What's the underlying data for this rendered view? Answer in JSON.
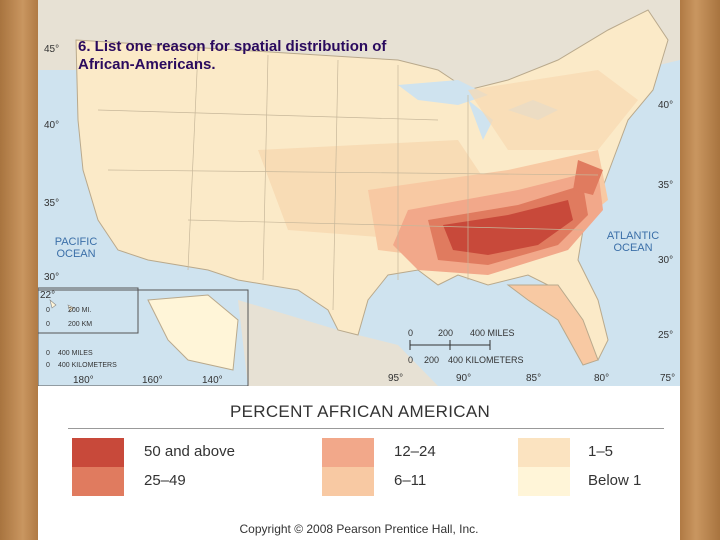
{
  "caption": "6. List one reason for spatial distribution of African-Americans.",
  "latitudes": [
    "45°",
    "40°",
    "35°",
    "30°",
    "40°",
    "35°",
    "30°",
    "25°",
    "22°"
  ],
  "longitudes": [
    "95°",
    "90°",
    "85°",
    "80°",
    "75°",
    "180°",
    "160°",
    "140°"
  ],
  "oceans": {
    "pacific": "PACIFIC OCEAN",
    "atlantic": "ATLANTIC OCEAN"
  },
  "scale": {
    "miles_ticks": [
      "0",
      "200",
      "400 MILES"
    ],
    "km_ticks": [
      "0",
      "200",
      "400 KILOMETERS"
    ],
    "inset_hawaii_miles": "200 MI.",
    "inset_hawaii_km": "200 KM",
    "inset_alaska_miles": "400 MILES",
    "inset_alaska_km": "400 KILOMETERS",
    "inset_zero": "0"
  },
  "legend": {
    "title": "PERCENT AFRICAN AMERICAN",
    "classes": [
      {
        "label": "50 and above",
        "color": "#c8493a"
      },
      {
        "label": "25–49",
        "color": "#e07b5f"
      },
      {
        "label": "12–24",
        "color": "#f2a88a"
      },
      {
        "label": "6–11",
        "color": "#f8c9a3"
      },
      {
        "label": "1–5",
        "color": "#fbe3c0"
      },
      {
        "label": "Below 1",
        "color": "#fff5d8"
      }
    ]
  },
  "colors": {
    "land": "#fbeac8",
    "water": "#cfe3ef",
    "caption": "#2a0a5e",
    "frame": "#b5834e"
  },
  "copyright": "Copyright © 2008 Pearson Prentice Hall, Inc."
}
